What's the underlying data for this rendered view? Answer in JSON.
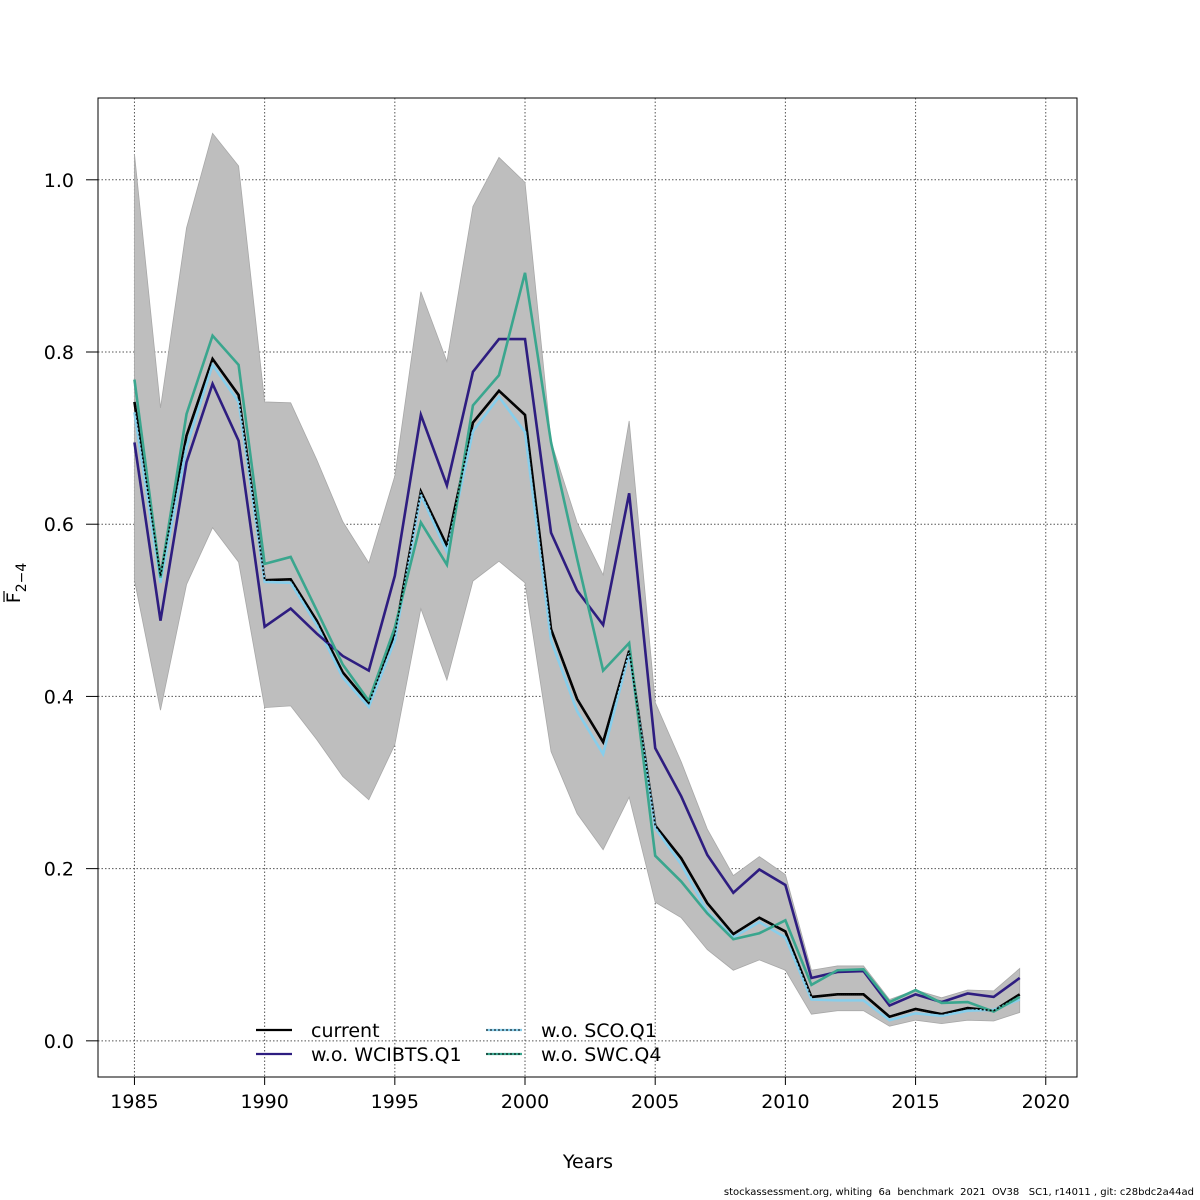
{
  "chart_data": {
    "type": "line",
    "title": "",
    "xlabel": "Years",
    "ylabel_main": "F",
    "ylabel_subscript": "2−4",
    "xlim": [
      1983.6,
      2021.2
    ],
    "ylim": [
      -0.042,
      1.095
    ],
    "grid": true,
    "legend_placement": "bottom-center",
    "x_ticks": [
      1985,
      1990,
      1995,
      2000,
      2005,
      2010,
      2015,
      2020
    ],
    "x_tick_labels": [
      "1985",
      "1990",
      "1995",
      "2000",
      "2005",
      "2010",
      "2015",
      "2020"
    ],
    "y_ticks": [
      0.0,
      0.2,
      0.4,
      0.6,
      0.8,
      1.0
    ],
    "y_tick_labels": [
      "0.0",
      "0.2",
      "0.4",
      "0.6",
      "0.8",
      "1.0"
    ],
    "x": [
      1985,
      1986,
      1987,
      1988,
      1989,
      1990,
      1991,
      1992,
      1993,
      1994,
      1995,
      1996,
      1997,
      1998,
      1999,
      2000,
      2001,
      2002,
      2003,
      2004,
      2005,
      2006,
      2007,
      2008,
      2009,
      2010,
      2011,
      2012,
      2013,
      2014,
      2015,
      2016,
      2017,
      2018,
      2019
    ],
    "confidence_band": {
      "name": "current CI",
      "color": "#bebebe",
      "upper": [
        1.03,
        0.735,
        0.944,
        1.054,
        1.016,
        0.742,
        0.741,
        0.675,
        0.603,
        0.555,
        0.656,
        0.87,
        0.789,
        0.969,
        1.026,
        0.997,
        0.696,
        0.602,
        0.541,
        0.72,
        0.393,
        0.324,
        0.246,
        0.192,
        0.214,
        0.193,
        0.082,
        0.087,
        0.087,
        0.048,
        0.059,
        0.05,
        0.059,
        0.058,
        0.084
      ],
      "lower": [
        0.535,
        0.384,
        0.53,
        0.596,
        0.556,
        0.387,
        0.389,
        0.35,
        0.307,
        0.28,
        0.344,
        0.502,
        0.419,
        0.534,
        0.557,
        0.532,
        0.336,
        0.264,
        0.222,
        0.283,
        0.161,
        0.143,
        0.106,
        0.082,
        0.094,
        0.082,
        0.031,
        0.035,
        0.035,
        0.017,
        0.024,
        0.02,
        0.024,
        0.023,
        0.033
      ]
    },
    "series": [
      {
        "name": "current",
        "color": "#000000",
        "style": "solid",
        "values": [
          0.742,
          0.54,
          0.703,
          0.792,
          0.75,
          0.535,
          0.536,
          0.488,
          0.428,
          0.392,
          0.472,
          0.638,
          0.575,
          0.718,
          0.755,
          0.727,
          0.478,
          0.397,
          0.347,
          0.453,
          0.25,
          0.212,
          0.16,
          0.124,
          0.143,
          0.127,
          0.051,
          0.054,
          0.054,
          0.028,
          0.037,
          0.031,
          0.038,
          0.035,
          0.054
        ]
      },
      {
        "name": "w.o. WCIBTS.Q1",
        "color": "#2e1d80",
        "style": "solid",
        "values": [
          0.695,
          0.488,
          0.672,
          0.763,
          0.697,
          0.481,
          0.502,
          0.473,
          0.447,
          0.43,
          0.54,
          0.727,
          0.645,
          0.777,
          0.815,
          0.815,
          0.59,
          0.523,
          0.483,
          0.636,
          0.34,
          0.284,
          0.216,
          0.172,
          0.199,
          0.181,
          0.073,
          0.08,
          0.081,
          0.041,
          0.054,
          0.045,
          0.055,
          0.051,
          0.073
        ]
      },
      {
        "name": "w.o. SCO.Q1",
        "color": "#87ceeb",
        "style": "dotted",
        "values": [
          0.73,
          0.532,
          0.69,
          0.785,
          0.742,
          0.533,
          0.532,
          0.483,
          0.422,
          0.388,
          0.465,
          0.634,
          0.568,
          0.708,
          0.748,
          0.707,
          0.465,
          0.383,
          0.333,
          0.45,
          0.247,
          0.205,
          0.15,
          0.12,
          0.138,
          0.12,
          0.048,
          0.047,
          0.047,
          0.024,
          0.032,
          0.029,
          0.035,
          0.036,
          0.048
        ]
      },
      {
        "name": "w.o. SWC.Q4",
        "color": "#3aa68e",
        "style": "dotted",
        "values": [
          0.768,
          0.538,
          0.728,
          0.819,
          0.785,
          0.554,
          0.562,
          0.5,
          0.437,
          0.395,
          0.48,
          0.602,
          0.553,
          0.738,
          0.773,
          0.892,
          0.695,
          0.56,
          0.43,
          0.462,
          0.215,
          0.185,
          0.148,
          0.118,
          0.125,
          0.14,
          0.065,
          0.082,
          0.083,
          0.045,
          0.059,
          0.044,
          0.045,
          0.034,
          0.051
        ]
      }
    ]
  },
  "footer": {
    "text": "stockassessment.org, whiting  6a  benchmark  2021  OV38   SC1, r14011 , git: c28bdc2a44ad"
  }
}
